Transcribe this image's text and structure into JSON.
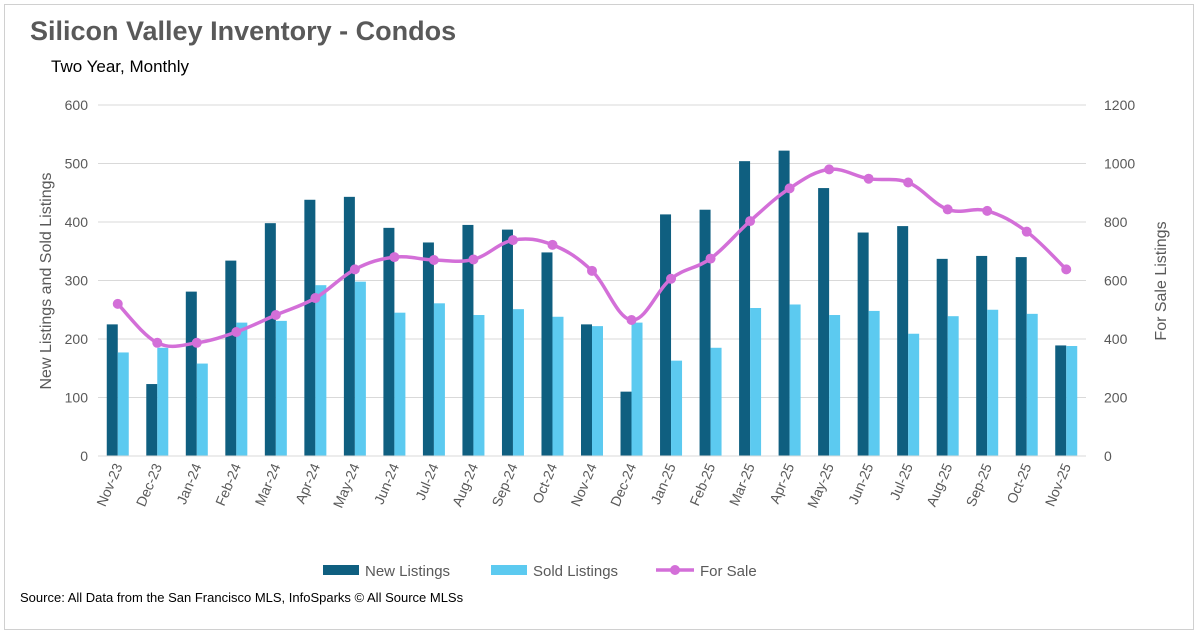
{
  "header": {
    "title": "Silicon Valley Inventory - Condos",
    "subtitle": "Two Year, Monthly"
  },
  "footer": {
    "source": "Source: All Data from the San Francisco MLS, InfoSparks © All Source MLSs"
  },
  "colors": {
    "new_listings": "#0f5f80",
    "sold_listings": "#5ccaf0",
    "for_sale": "#d36fd8",
    "grid": "#d9d9d9",
    "text": "#595959"
  },
  "chart_data": {
    "type": "bar",
    "title": "Silicon Valley Inventory - Condos",
    "subtitle": "Two Year, Monthly",
    "categories": [
      "Nov-23",
      "Dec-23",
      "Jan-24",
      "Feb-24",
      "Mar-24",
      "Apr-24",
      "May-24",
      "Jun-24",
      "Jul-24",
      "Aug-24",
      "Sep-24",
      "Oct-24",
      "Nov-24",
      "Dec-24",
      "Jan-25",
      "Feb-25",
      "Mar-25",
      "Apr-25",
      "May-25",
      "Jun-25",
      "Jul-25",
      "Aug-25",
      "Sep-25",
      "Oct-25",
      "Nov-25"
    ],
    "ylabel": "New Listings and Sold Listings",
    "y2label": "For Sale Listings",
    "ylim": [
      0,
      600
    ],
    "y2lim": [
      0,
      1200
    ],
    "yticks": [
      "0",
      "100",
      "200",
      "300",
      "400",
      "500",
      "600"
    ],
    "y2ticks": [
      "0",
      "200",
      "400",
      "600",
      "800",
      "1000",
      "1200"
    ],
    "grid": true,
    "legend_position": "bottom",
    "series": [
      {
        "name": "New Listings",
        "type": "bar",
        "axis": "left",
        "values": [
          225,
          123,
          281,
          334,
          398,
          438,
          443,
          390,
          365,
          395,
          387,
          348,
          225,
          110,
          413,
          421,
          504,
          522,
          458,
          382,
          393,
          337,
          342,
          340,
          189
        ]
      },
      {
        "name": "Sold Listings",
        "type": "bar",
        "axis": "left",
        "values": [
          177,
          185,
          158,
          228,
          231,
          292,
          298,
          245,
          261,
          241,
          251,
          238,
          222,
          228,
          163,
          185,
          253,
          259,
          241,
          248,
          209,
          239,
          250,
          243,
          188
        ]
      },
      {
        "name": "For Sale",
        "type": "line",
        "axis": "right",
        "values": [
          520,
          387,
          387,
          424,
          482,
          540,
          638,
          680,
          670,
          672,
          738,
          722,
          633,
          465,
          606,
          675,
          803,
          915,
          980,
          948,
          935,
          843,
          838,
          767,
          638
        ]
      }
    ]
  }
}
